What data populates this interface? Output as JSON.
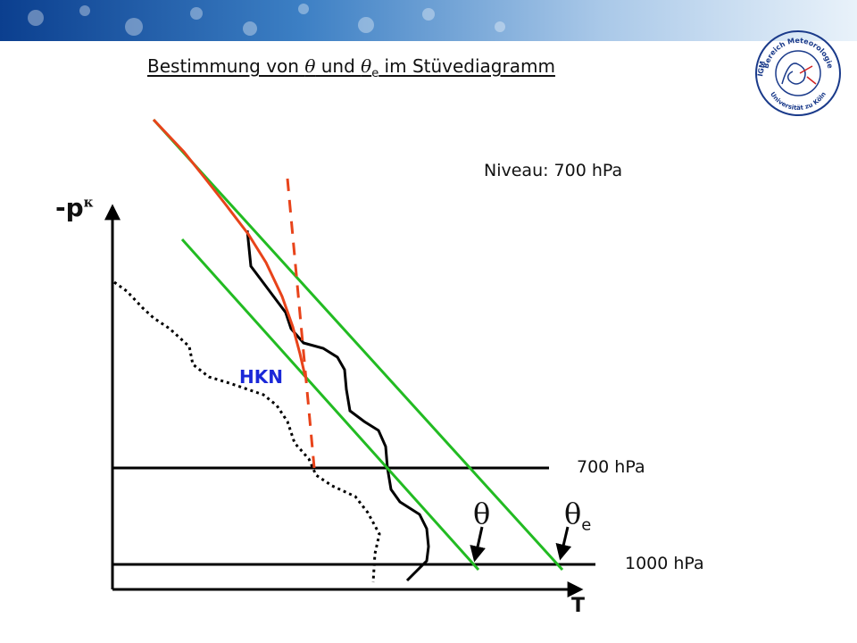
{
  "header": {
    "title_prefix": "Bestimmung von ",
    "theta_symbol": "θ",
    "title_und": " und ",
    "theta_e_symbol": "θ",
    "theta_e_subscript": "e",
    "title_suffix": " im Stüvediagramm",
    "banner_colors": [
      "#0b3f8f",
      "#3c7fc4",
      "#a9c8e8",
      "#e9f2fa"
    ]
  },
  "logo": {
    "name": "university-seal",
    "text_top": "Bereich Meteorologie",
    "text_left": "IGM",
    "text_bottom": "Universität zu Köln",
    "color": "#1a3a8a"
  },
  "diagram": {
    "niveau_label": "Niveau: 700 hPa",
    "y_axis_label": "-p",
    "y_axis_superscript": "κ",
    "x_axis_label": "T",
    "level_700_label": "700 hPa",
    "level_1000_label": "1000 hPa",
    "hkn_label": "HKN",
    "theta_label": "θ",
    "theta_e_label": "θ",
    "theta_e_subscript": "e",
    "colors": {
      "green": "#22bb22",
      "orange": "#e8431a",
      "hkn_blue": "#1a28d8",
      "black": "#000000"
    }
  }
}
